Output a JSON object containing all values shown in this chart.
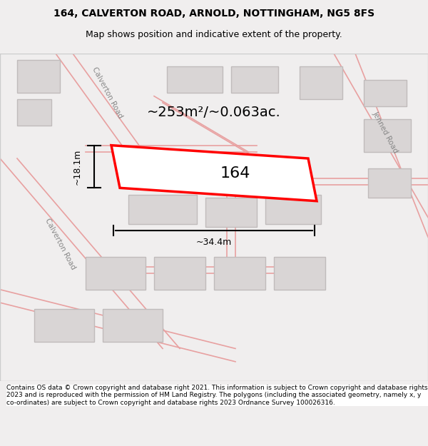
{
  "title_line1": "164, CALVERTON ROAD, ARNOLD, NOTTINGHAM, NG5 8FS",
  "title_line2": "Map shows position and indicative extent of the property.",
  "footer_text": "Contains OS data © Crown copyright and database right 2021. This information is subject to Crown copyright and database rights 2023 and is reproduced with the permission of HM Land Registry. The polygons (including the associated geometry, namely x, y co-ordinates) are subject to Crown copyright and database rights 2023 Ordnance Survey 100026316.",
  "area_text": "~253m²/~0.063ac.",
  "label_164": "164",
  "dim_width": "~34.4m",
  "dim_height": "~18.1m",
  "road_label_upper": "Calverton Road",
  "road_label_lower": "Calverton Road",
  "road_label_right": "Jenned Road",
  "bg_color": "#f0eeee",
  "map_bg": "#f5f3f3",
  "building_fill": "#d9d5d5",
  "building_edge": "#c0bbbb",
  "road_line_color": "#e8a0a0",
  "highlight_fill": "#ffffff",
  "highlight_edge": "#ff0000",
  "dim_line_color": "#000000",
  "title_fontsize": 10,
  "subtitle_fontsize": 9,
  "footer_fontsize": 6.5,
  "area_fontsize": 14,
  "label_fontsize": 16,
  "road_label_fontsize": 7.5,
  "dim_fontsize": 9
}
